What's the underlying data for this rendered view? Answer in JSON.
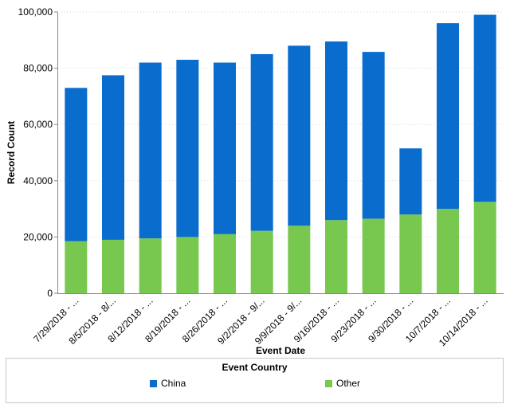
{
  "chart_data": {
    "type": "bar",
    "stacked": true,
    "xlabel": "Event Date",
    "ylabel": "Record Count",
    "ylim": [
      0,
      100000
    ],
    "yticks": [
      0,
      20000,
      40000,
      60000,
      80000,
      100000
    ],
    "ytick_labels": [
      "0",
      "20,000",
      "40,000",
      "60,000",
      "80,000",
      "100,000"
    ],
    "categories": [
      "7/29/2018 - ...",
      "8/5/2018 - 8/...",
      "8/12/2018 - ...",
      "8/19/2018 - ...",
      "8/26/2018 - ...",
      "9/2/2018 - 9/...",
      "9/9/2018 - 9/...",
      "9/16/2018 - ...",
      "9/23/2018 - ...",
      "9/30/2018 - ...",
      "10/7/2018 - ...",
      "10/14/2018 - ..."
    ],
    "series": [
      {
        "name": "Other",
        "color": "#78c850",
        "values": [
          18500,
          19000,
          19500,
          20000,
          21000,
          22200,
          24000,
          26000,
          26500,
          28000,
          30000,
          32500
        ]
      },
      {
        "name": "China",
        "color": "#0a6ccc",
        "values": [
          54500,
          58500,
          62500,
          63000,
          61000,
          62800,
          64000,
          63500,
          59300,
          23500,
          66000,
          66500
        ]
      }
    ],
    "grid": "horizontal-dotted",
    "legend": {
      "title": "Event Country",
      "placement": "bottom",
      "items": [
        "China",
        "Other"
      ]
    }
  }
}
